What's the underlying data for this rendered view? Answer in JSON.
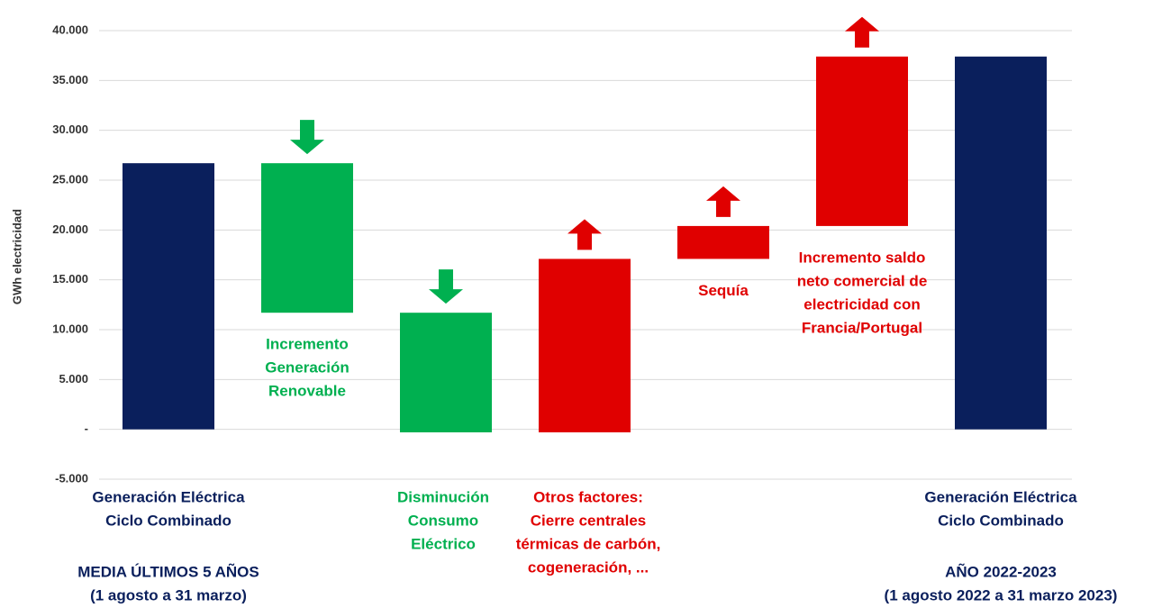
{
  "chart_data": {
    "type": "waterfall",
    "y_label": "GWh electricidad",
    "categories": [
      [
        "Generación Eléctrica",
        "Ciclo Combinado"
      ],
      [
        "Incremento",
        "Generación",
        "Renovable"
      ],
      [
        "Disminución",
        "Consumo",
        "Eléctrico"
      ],
      [
        "Otros factores:",
        "Cierre centrales",
        "térmicas de carbón,",
        "cogeneración, ..."
      ],
      [
        "Sequía"
      ],
      [
        "Incremento saldo",
        "neto comercial de",
        "electricidad con",
        "Francia/Portugal"
      ],
      [
        "Generación Eléctrica",
        "Ciclo Combinado"
      ]
    ],
    "values": [
      26700,
      -15000,
      -12000,
      17400,
      3300,
      17000,
      37400
    ],
    "measure": [
      "absolute",
      "relative",
      "relative",
      "relative",
      "relative",
      "relative",
      "absolute"
    ],
    "colors": [
      "#0a1f5c",
      "#00b050",
      "#00b050",
      "#e00000",
      "#e00000",
      "#e00000",
      "#0a1f5c"
    ],
    "label_position": [
      "below-axis",
      "below-bar",
      "below-axis",
      "below-axis",
      "below-bar",
      "below-bar",
      "below-axis"
    ],
    "annotations": [
      {
        "category": 0,
        "lines": [
          "MEDIA ÚLTIMOS 5 AÑOS",
          "(1 agosto a 31 marzo)"
        ]
      },
      {
        "category": 6,
        "lines": [
          "AÑO 2022-2023",
          "(1 agosto 2022 a 31 marzo 2023)"
        ]
      }
    ],
    "ylim": [
      -5000,
      40000
    ],
    "yticks": [
      {
        "value": -5000,
        "label": "-5.000"
      },
      {
        "value": 0,
        "label": "-"
      },
      {
        "value": 5000,
        "label": "5.000"
      },
      {
        "value": 10000,
        "label": "10.000"
      },
      {
        "value": 15000,
        "label": "15.000"
      },
      {
        "value": 20000,
        "label": "20.000"
      },
      {
        "value": 25000,
        "label": "25.000"
      },
      {
        "value": 30000,
        "label": "30.000"
      },
      {
        "value": 35000,
        "label": "35.000"
      },
      {
        "value": 40000,
        "label": "40.000"
      }
    ],
    "grid": true
  }
}
